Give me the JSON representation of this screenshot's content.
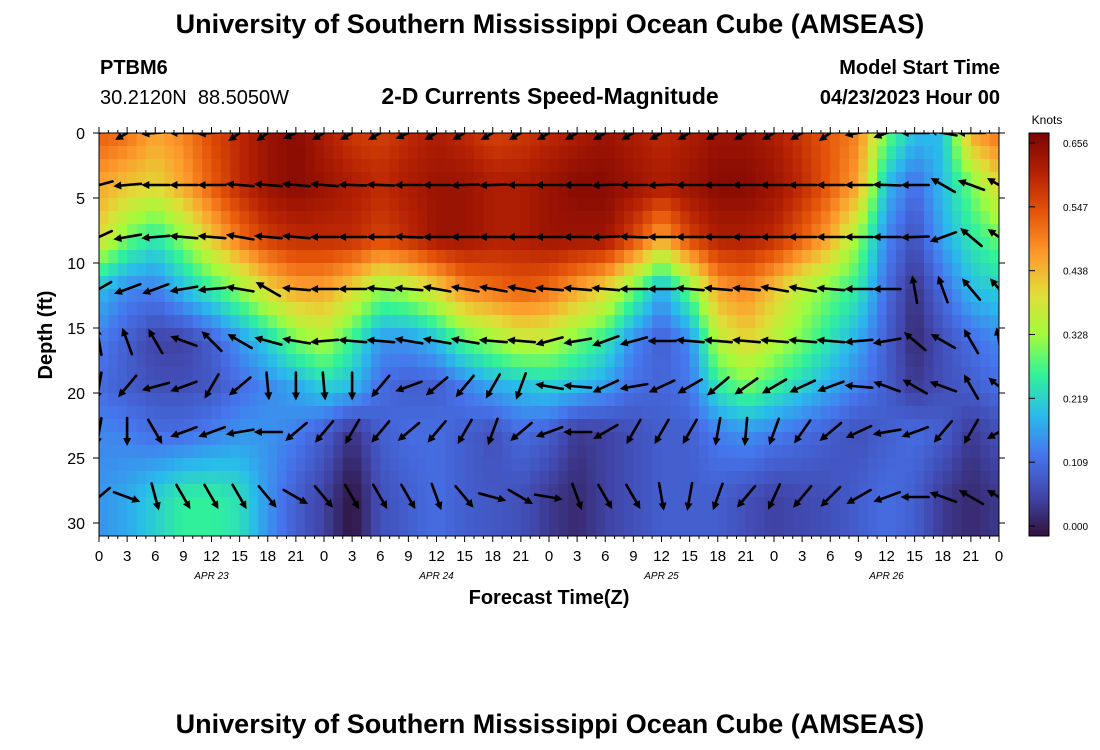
{
  "page": {
    "title_top": "University of Southern Mississippi Ocean Cube (AMSEAS)",
    "title_bottom": "University of Southern Mississippi Ocean Cube (AMSEAS)",
    "station_id": "PTBM6",
    "station_coords": "30.2120N  88.5050W",
    "plot_title": "2-D Currents Speed-Magnitude",
    "model_label": "Model Start Time",
    "model_time": "04/23/2023 Hour 00"
  },
  "chart_data": {
    "type": "heatmap",
    "title": "2-D Currents Speed-Magnitude",
    "xlabel": "Forecast Time(Z)",
    "ylabel": "Depth (ft)",
    "x_tick_labels": [
      "0",
      "3",
      "6",
      "9",
      "12",
      "15",
      "18",
      "21",
      "0",
      "3",
      "6",
      "9",
      "12",
      "15",
      "18",
      "21",
      "0",
      "3",
      "6",
      "9",
      "12",
      "15",
      "18",
      "21",
      "0",
      "3",
      "6",
      "9",
      "12",
      "15",
      "18",
      "21",
      "0"
    ],
    "x_range_hours": [
      0,
      96
    ],
    "date_labels": [
      {
        "hour": 12,
        "label": "APR 23"
      },
      {
        "hour": 36,
        "label": "APR 24"
      },
      {
        "hour": 60,
        "label": "APR 25"
      },
      {
        "hour": 84,
        "label": "APR 26"
      }
    ],
    "y_ticks": [
      0,
      5,
      10,
      15,
      20,
      25,
      30
    ],
    "y_range_ft": [
      0,
      31
    ],
    "colorbar": {
      "unit": "Knots",
      "tick_labels": [
        "0.656",
        "0.547",
        "0.438",
        "0.328",
        "0.219",
        "0.109",
        "0.000"
      ],
      "range": [
        0,
        0.656
      ]
    },
    "grid_hours": [
      0,
      3,
      6,
      9,
      12,
      15,
      18,
      21,
      24,
      27,
      30,
      33,
      36,
      39,
      42,
      45,
      48,
      51,
      54,
      57,
      60,
      63,
      66,
      69,
      72,
      75,
      78,
      81,
      84,
      87,
      90,
      93,
      96
    ],
    "grid_depths": [
      0,
      4,
      8,
      12,
      16,
      19.5,
      23,
      28
    ],
    "speed_knots": [
      [
        0.52,
        0.5,
        0.45,
        0.48,
        0.54,
        0.58,
        0.62,
        0.64,
        0.6,
        0.56,
        0.55,
        0.58,
        0.6,
        0.58,
        0.55,
        0.56,
        0.58,
        0.6,
        0.62,
        0.6,
        0.58,
        0.6,
        0.62,
        0.62,
        0.6,
        0.56,
        0.52,
        0.48,
        0.3,
        0.2,
        0.2,
        0.45,
        0.5
      ],
      [
        0.45,
        0.42,
        0.4,
        0.45,
        0.52,
        0.58,
        0.62,
        0.64,
        0.62,
        0.6,
        0.58,
        0.6,
        0.62,
        0.62,
        0.6,
        0.6,
        0.62,
        0.64,
        0.64,
        0.62,
        0.6,
        0.62,
        0.64,
        0.64,
        0.62,
        0.58,
        0.52,
        0.45,
        0.2,
        0.12,
        0.2,
        0.3,
        0.4
      ],
      [
        0.4,
        0.3,
        0.25,
        0.32,
        0.42,
        0.5,
        0.56,
        0.58,
        0.58,
        0.58,
        0.55,
        0.58,
        0.62,
        0.62,
        0.6,
        0.6,
        0.62,
        0.62,
        0.62,
        0.55,
        0.45,
        0.55,
        0.6,
        0.6,
        0.58,
        0.52,
        0.45,
        0.32,
        0.15,
        0.08,
        0.18,
        0.25,
        0.3
      ],
      [
        0.2,
        0.15,
        0.14,
        0.2,
        0.26,
        0.32,
        0.4,
        0.45,
        0.45,
        0.4,
        0.32,
        0.34,
        0.4,
        0.48,
        0.5,
        0.52,
        0.5,
        0.45,
        0.4,
        0.3,
        0.18,
        0.3,
        0.45,
        0.48,
        0.42,
        0.35,
        0.3,
        0.25,
        0.12,
        0.04,
        0.12,
        0.2,
        0.22
      ],
      [
        0.14,
        0.1,
        0.06,
        0.06,
        0.1,
        0.16,
        0.22,
        0.3,
        0.34,
        0.26,
        0.16,
        0.16,
        0.2,
        0.28,
        0.32,
        0.36,
        0.35,
        0.3,
        0.25,
        0.15,
        0.1,
        0.15,
        0.35,
        0.4,
        0.35,
        0.3,
        0.24,
        0.18,
        0.1,
        0.03,
        0.08,
        0.12,
        0.15
      ],
      [
        0.12,
        0.1,
        0.08,
        0.08,
        0.09,
        0.12,
        0.15,
        0.18,
        0.22,
        0.2,
        0.12,
        0.1,
        0.1,
        0.14,
        0.18,
        0.2,
        0.22,
        0.2,
        0.17,
        0.12,
        0.11,
        0.13,
        0.25,
        0.3,
        0.26,
        0.22,
        0.18,
        0.14,
        0.1,
        0.05,
        0.08,
        0.1,
        0.12
      ],
      [
        0.15,
        0.14,
        0.12,
        0.12,
        0.14,
        0.16,
        0.16,
        0.14,
        0.1,
        0.04,
        0.1,
        0.12,
        0.12,
        0.1,
        0.08,
        0.12,
        0.1,
        0.05,
        0.06,
        0.08,
        0.1,
        0.1,
        0.14,
        0.16,
        0.14,
        0.12,
        0.1,
        0.08,
        0.1,
        0.12,
        0.1,
        0.05,
        0.08
      ],
      [
        0.16,
        0.18,
        0.22,
        0.26,
        0.26,
        0.24,
        0.16,
        0.1,
        0.06,
        0.0,
        0.08,
        0.1,
        0.12,
        0.1,
        0.09,
        0.08,
        0.05,
        0.03,
        0.06,
        0.08,
        0.1,
        0.1,
        0.1,
        0.08,
        0.06,
        0.07,
        0.08,
        0.1,
        0.12,
        0.1,
        0.05,
        0.03,
        0.05
      ]
    ],
    "arrow_depths": [
      0,
      4,
      8,
      12,
      16,
      19.5,
      23,
      28
    ],
    "arrow_rows": [
      [
        200,
        210,
        185,
        180,
        185,
        215,
        215,
        205,
        210,
        210,
        210,
        205,
        210,
        210,
        210,
        210,
        210,
        210,
        210,
        210,
        210,
        210,
        210,
        210,
        210,
        210,
        215,
        190,
        200,
        180,
        170,
        180,
        155
      ],
      [
        195,
        185,
        180,
        180,
        180,
        175,
        175,
        175,
        175,
        178,
        178,
        180,
        180,
        182,
        182,
        180,
        180,
        180,
        182,
        180,
        182,
        180,
        180,
        180,
        180,
        180,
        180,
        180,
        178,
        180,
        150,
        160,
        150
      ],
      [
        205,
        190,
        185,
        175,
        175,
        170,
        175,
        175,
        180,
        180,
        180,
        178,
        180,
        180,
        180,
        180,
        180,
        180,
        182,
        178,
        180,
        180,
        180,
        180,
        180,
        180,
        180,
        180,
        180,
        182,
        200,
        140,
        145
      ],
      [
        210,
        200,
        200,
        190,
        185,
        170,
        150,
        175,
        180,
        180,
        175,
        175,
        170,
        170,
        170,
        170,
        175,
        175,
        175,
        180,
        180,
        175,
        175,
        175,
        170,
        170,
        175,
        180,
        180,
        100,
        110,
        130,
        130
      ],
      [
        100,
        110,
        120,
        160,
        135,
        150,
        165,
        170,
        185,
        175,
        175,
        170,
        170,
        170,
        175,
        175,
        195,
        190,
        200,
        195,
        180,
        175,
        175,
        175,
        175,
        175,
        175,
        185,
        190,
        140,
        150,
        120,
        100
      ],
      [
        260,
        230,
        195,
        200,
        240,
        220,
        275,
        270,
        275,
        270,
        230,
        200,
        220,
        230,
        240,
        250,
        170,
        175,
        205,
        190,
        205,
        210,
        220,
        215,
        210,
        205,
        200,
        175,
        160,
        150,
        160,
        120,
        140
      ],
      [
        260,
        270,
        300,
        200,
        200,
        190,
        180,
        220,
        230,
        240,
        230,
        220,
        230,
        240,
        250,
        220,
        200,
        180,
        210,
        240,
        240,
        240,
        260,
        265,
        250,
        235,
        220,
        205,
        190,
        200,
        230,
        240,
        210
      ],
      [
        220,
        340,
        285,
        300,
        300,
        300,
        310,
        330,
        310,
        300,
        300,
        300,
        290,
        310,
        345,
        330,
        350,
        290,
        300,
        300,
        280,
        260,
        250,
        230,
        245,
        230,
        225,
        210,
        200,
        180,
        160,
        150,
        150
      ]
    ]
  }
}
